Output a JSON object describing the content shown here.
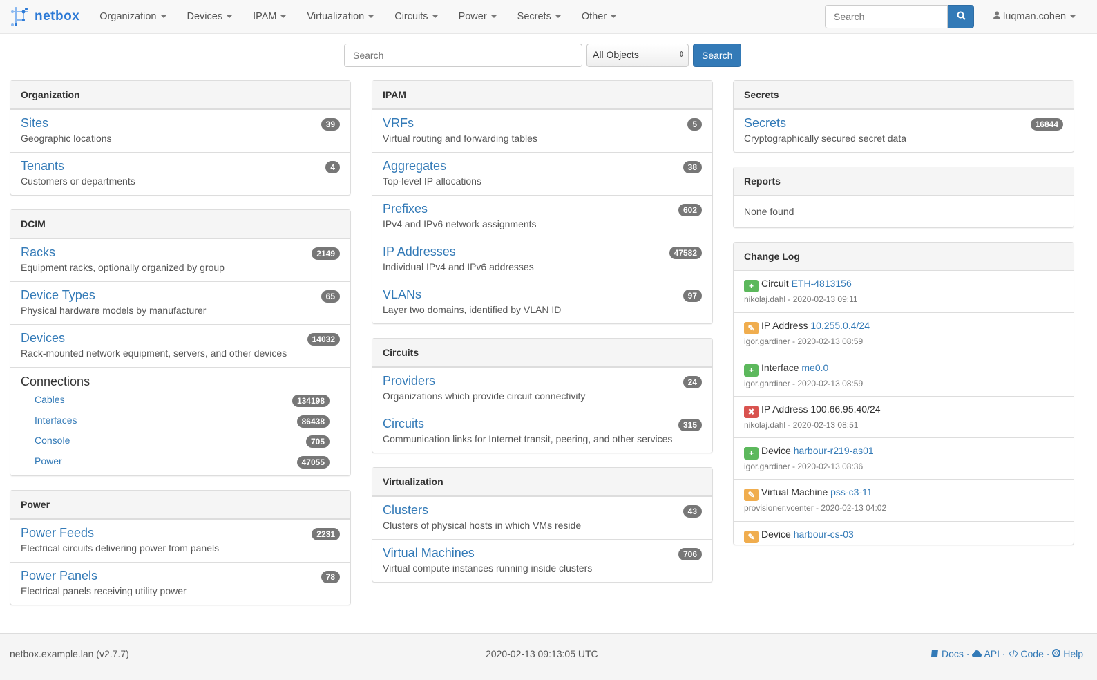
{
  "nav": {
    "brand": "netbox",
    "menu": [
      "Organization",
      "Devices",
      "IPAM",
      "Virtualization",
      "Circuits",
      "Power",
      "Secrets",
      "Other"
    ],
    "search_placeholder": "Search",
    "user": "luqman.cohen"
  },
  "search": {
    "placeholder": "Search",
    "select": "All Objects",
    "button": "Search"
  },
  "columns": [
    [
      {
        "title": "Organization",
        "rows": [
          {
            "label": "Sites",
            "desc": "Geographic locations",
            "count": "39"
          },
          {
            "label": "Tenants",
            "desc": "Customers or departments",
            "count": "4"
          }
        ]
      },
      {
        "title": "DCIM",
        "rows": [
          {
            "label": "Racks",
            "desc": "Equipment racks, optionally organized by group",
            "count": "2149"
          },
          {
            "label": "Device Types",
            "desc": "Physical hardware models by manufacturer",
            "count": "65"
          },
          {
            "label": "Devices",
            "desc": "Rack-mounted network equipment, servers, and other devices",
            "count": "14032"
          }
        ],
        "connections": {
          "title": "Connections",
          "items": [
            {
              "label": "Cables",
              "count": "134198"
            },
            {
              "label": "Interfaces",
              "count": "86438"
            },
            {
              "label": "Console",
              "count": "705"
            },
            {
              "label": "Power",
              "count": "47055"
            }
          ]
        }
      },
      {
        "title": "Power",
        "rows": [
          {
            "label": "Power Feeds",
            "desc": "Electrical circuits delivering power from panels",
            "count": "2231"
          },
          {
            "label": "Power Panels",
            "desc": "Electrical panels receiving utility power",
            "count": "78"
          }
        ]
      }
    ],
    [
      {
        "title": "IPAM",
        "rows": [
          {
            "label": "VRFs",
            "desc": "Virtual routing and forwarding tables",
            "count": "5"
          },
          {
            "label": "Aggregates",
            "desc": "Top-level IP allocations",
            "count": "38"
          },
          {
            "label": "Prefixes",
            "desc": "IPv4 and IPv6 network assignments",
            "count": "602"
          },
          {
            "label": "IP Addresses",
            "desc": "Individual IPv4 and IPv6 addresses",
            "count": "47582"
          },
          {
            "label": "VLANs",
            "desc": "Layer two domains, identified by VLAN ID",
            "count": "97"
          }
        ]
      },
      {
        "title": "Circuits",
        "rows": [
          {
            "label": "Providers",
            "desc": "Organizations which provide circuit connectivity",
            "count": "24"
          },
          {
            "label": "Circuits",
            "desc": "Communication links for Internet transit, peering, and other services",
            "count": "315"
          }
        ]
      },
      {
        "title": "Virtualization",
        "rows": [
          {
            "label": "Clusters",
            "desc": "Clusters of physical hosts in which VMs reside",
            "count": "43"
          },
          {
            "label": "Virtual Machines",
            "desc": "Virtual compute instances running inside clusters",
            "count": "706"
          }
        ]
      }
    ],
    [
      {
        "title": "Secrets",
        "rows": [
          {
            "label": "Secrets",
            "desc": "Cryptographically secured secret data",
            "count": "16844"
          }
        ]
      },
      {
        "title": "Reports",
        "body": "None found"
      },
      {
        "title": "Change Log",
        "changelog": [
          {
            "action": "create",
            "type": "Circuit",
            "object": "ETH-4813156",
            "meta": "nikolaj.dahl - 2020-02-13 09:11"
          },
          {
            "action": "update",
            "type": "IP Address",
            "object": "10.255.0.4/24",
            "meta": "igor.gardiner - 2020-02-13 08:59"
          },
          {
            "action": "create",
            "type": "Interface",
            "object": "me0.0",
            "meta": "igor.gardiner - 2020-02-13 08:59"
          },
          {
            "action": "delete",
            "type": "IP Address",
            "object": "100.66.95.40/24",
            "meta": "nikolaj.dahl - 2020-02-13 08:51"
          },
          {
            "action": "create",
            "type": "Device",
            "object": "harbour-r219-as01",
            "meta": "igor.gardiner - 2020-02-13 08:36"
          },
          {
            "action": "update",
            "type": "Virtual Machine",
            "object": "pss-c3-11",
            "meta": "provisioner.vcenter - 2020-02-13 04:02"
          },
          {
            "action": "update",
            "type": "Device",
            "object": "harbour-cs-03",
            "meta": ""
          }
        ]
      }
    ]
  ],
  "action_colors": {
    "create": "#5cb85c",
    "update": "#f0ad4e",
    "delete": "#d9534f"
  },
  "footer": {
    "host": "netbox.example.lan (v2.7.7)",
    "time": "2020-02-13 09:13:05 UTC",
    "links": [
      "Docs",
      "API",
      "Code",
      "Help"
    ]
  }
}
